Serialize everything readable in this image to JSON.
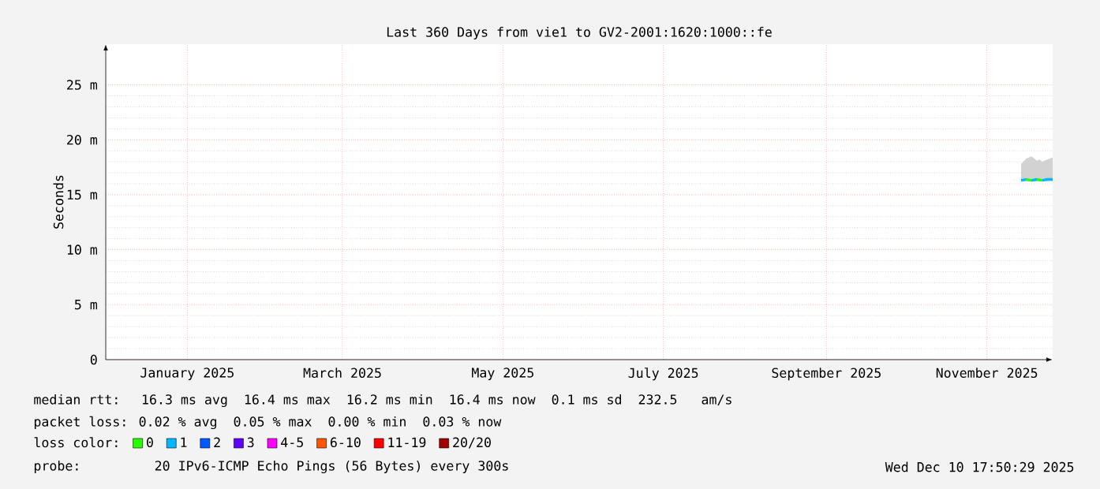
{
  "chart_data": {
    "type": "line",
    "title": "Last 360 Days from vie1 to GV2-2001:1620:1000::fe",
    "ylabel": "Seconds",
    "xlim": [
      "2024-12-15",
      "2025-12-10"
    ],
    "xticks": [
      {
        "value": "2025-01-15",
        "label": "January 2025"
      },
      {
        "value": "2025-03-15",
        "label": "March 2025"
      },
      {
        "value": "2025-05-15",
        "label": "May 2025"
      },
      {
        "value": "2025-07-15",
        "label": "July 2025"
      },
      {
        "value": "2025-09-15",
        "label": "September 2025"
      },
      {
        "value": "2025-11-15",
        "label": "November 2025"
      }
    ],
    "ylim": [
      0,
      28.7
    ],
    "yticks": [
      0,
      {
        "value": 5,
        "label": "5 m"
      },
      {
        "value": 10,
        "label": "10 m"
      },
      {
        "value": 15,
        "label": "15 m"
      },
      {
        "value": 20,
        "label": "20 m"
      },
      {
        "value": 25,
        "label": "25 m"
      }
    ],
    "grid": true,
    "legend": "bottom",
    "legend_title": "loss color:",
    "series": [
      {
        "name": "0",
        "color": "#26ff00",
        "x": [
          "2025-11-30",
          "2025-12-02",
          "2025-12-04",
          "2025-12-06"
        ],
        "values": [
          16.4,
          16.3,
          16.4,
          16.3
        ]
      },
      {
        "name": "1",
        "color": "#00b8ff",
        "x": [
          "2025-11-28",
          "2025-11-30",
          "2025-12-01",
          "2025-12-02",
          "2025-12-04",
          "2025-12-05",
          "2025-12-06",
          "2025-12-08",
          "2025-12-10"
        ],
        "values": [
          16.3,
          16.4,
          null,
          16.3,
          16.4,
          null,
          16.3,
          16.4,
          16.4
        ],
        "lower": [
          16.2,
          16.2,
          16.2,
          16.2,
          16.2,
          16.2,
          16.2,
          16.2,
          16.2
        ],
        "upper": [
          17.8,
          18.3,
          18.4,
          18.5,
          18.1,
          18.2,
          18.0,
          18.2,
          18.4
        ]
      },
      {
        "name": "2",
        "color": "#0059ff"
      },
      {
        "name": "3",
        "color": "#5e00ff"
      },
      {
        "name": "4-5",
        "color": "#ff00ff"
      },
      {
        "name": "6-10",
        "color": "#ff5500"
      },
      {
        "name": "11-19",
        "color": "#ff0000"
      },
      {
        "name": "20/20",
        "color": "#a10000"
      }
    ],
    "annotations": [
      "median rtt:  16.3 ms avg  16.4 ms max  16.2 ms min  16.4 ms now  0.1 ms sd  232.5   am/s",
      "packet loss: 0.02 % avg  0.05 % max  0.00 % min  0.03 % now",
      "probe:       20 IPv6-ICMP Echo Pings (56 Bytes) every 300s",
      "Wed Dec 10 17:50:29 2025"
    ]
  }
}
